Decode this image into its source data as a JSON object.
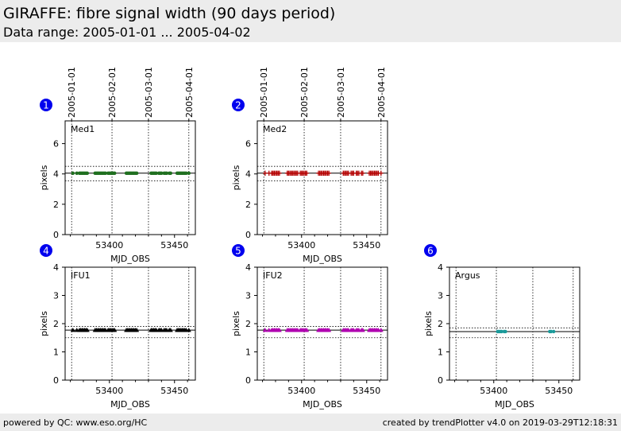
{
  "header": {
    "title": "GIRAFFE: fibre signal width (90 days period)",
    "subtitle": "Data range: 2005-01-01 ... 2005-04-02"
  },
  "footer": {
    "left": "powered by QC: www.eso.org/HC",
    "right": "created by trendPlotter v4.0 on 2019-03-29T12:18:31"
  },
  "chart_data": [
    {
      "type": "scatter",
      "badge": "1",
      "label": "Med1",
      "color": "#1f6f1f",
      "marker": "circle",
      "xlabel": "MJD_OBS",
      "ylabel": "pixels",
      "xlim": [
        53366,
        53466
      ],
      "ylim": [
        0,
        7.5
      ],
      "yticks": [
        0,
        2,
        4,
        6
      ],
      "xticks": [
        53400,
        53450
      ],
      "vlines": [
        53371,
        53402,
        53430,
        53461
      ],
      "date_labels": [
        "2005-01-01",
        "2005-02-01",
        "2005-03-01",
        "2005-04-01"
      ],
      "ref_line": 4.05,
      "dotted_lines": [
        4.5,
        3.55
      ],
      "x": [
        53372,
        53375,
        53377,
        53378,
        53379,
        53380,
        53381,
        53382,
        53383,
        53389,
        53390,
        53391,
        53392,
        53393,
        53394,
        53395,
        53396,
        53397,
        53399,
        53400,
        53401,
        53402,
        53403,
        53404,
        53413,
        53414,
        53415,
        53416,
        53417,
        53418,
        53419,
        53420,
        53421,
        53432,
        53433,
        53434,
        53435,
        53436,
        53438,
        53439,
        53440,
        53442,
        53443,
        53444,
        53446,
        53447,
        53452,
        53453,
        53454,
        53455,
        53456,
        53457,
        53458,
        53459,
        53461
      ],
      "y": [
        4.05,
        4.05,
        4.05,
        4.05,
        4.05,
        4.05,
        4.05,
        4.05,
        4.05,
        4.05,
        4.05,
        4.05,
        4.05,
        4.05,
        4.05,
        4.05,
        4.05,
        4.05,
        4.05,
        4.05,
        4.05,
        4.05,
        4.05,
        4.05,
        4.05,
        4.05,
        4.05,
        4.05,
        4.05,
        4.05,
        4.05,
        4.05,
        4.05,
        4.05,
        4.05,
        4.05,
        4.05,
        4.05,
        4.05,
        4.05,
        4.05,
        4.05,
        4.05,
        4.05,
        4.05,
        4.05,
        4.05,
        4.05,
        4.05,
        4.05,
        4.05,
        4.05,
        4.05,
        4.05,
        4.05
      ]
    },
    {
      "type": "scatter",
      "badge": "2",
      "label": "Med2",
      "color": "#b40000",
      "marker": "plus",
      "xlabel": "MJD_OBS",
      "ylabel": "pixels",
      "xlim": [
        53366,
        53466
      ],
      "ylim": [
        0,
        7.5
      ],
      "yticks": [
        0,
        2,
        4,
        6
      ],
      "xticks": [
        53400,
        53450
      ],
      "vlines": [
        53371,
        53402,
        53430,
        53461
      ],
      "date_labels": [
        "2005-01-01",
        "2005-02-01",
        "2005-03-01",
        "2005-04-01"
      ],
      "ref_line": 4.05,
      "dotted_lines": [
        4.5,
        3.55
      ],
      "x": [
        53372,
        53375,
        53377,
        53378,
        53379,
        53380,
        53381,
        53382,
        53383,
        53389,
        53390,
        53391,
        53392,
        53393,
        53394,
        53395,
        53396,
        53397,
        53399,
        53400,
        53401,
        53402,
        53403,
        53404,
        53413,
        53414,
        53415,
        53416,
        53417,
        53418,
        53419,
        53420,
        53421,
        53432,
        53433,
        53434,
        53435,
        53436,
        53438,
        53439,
        53440,
        53442,
        53443,
        53444,
        53446,
        53447,
        53452,
        53453,
        53454,
        53455,
        53456,
        53457,
        53458,
        53459,
        53461
      ],
      "y": [
        4.05,
        4.05,
        4.05,
        4.05,
        4.05,
        4.05,
        4.05,
        4.05,
        4.05,
        4.05,
        4.05,
        4.05,
        4.05,
        4.05,
        4.05,
        4.05,
        4.05,
        4.05,
        4.05,
        4.05,
        4.05,
        4.05,
        4.05,
        4.05,
        4.05,
        4.05,
        4.05,
        4.05,
        4.05,
        4.05,
        4.05,
        4.05,
        4.05,
        4.05,
        4.05,
        4.05,
        4.05,
        4.05,
        4.05,
        4.05,
        4.05,
        4.05,
        4.05,
        4.05,
        4.05,
        4.05,
        4.05,
        4.05,
        4.05,
        4.05,
        4.05,
        4.05,
        4.05,
        4.05,
        4.05
      ]
    },
    {
      "type": "scatter",
      "badge": "4",
      "label": "IFU1",
      "color": "#000000",
      "marker": "triangle",
      "xlabel": "MJD_OBS",
      "ylabel": "pixels",
      "xlim": [
        53366,
        53466
      ],
      "ylim": [
        0,
        4
      ],
      "yticks": [
        0,
        1,
        2,
        3,
        4
      ],
      "xticks": [
        53400,
        53450
      ],
      "vlines": [
        53371,
        53402,
        53430,
        53461
      ],
      "date_labels": [],
      "ref_line": 1.77,
      "dotted_lines": [
        1.9,
        1.5
      ],
      "x": [
        53372,
        53375,
        53377,
        53378,
        53379,
        53380,
        53381,
        53382,
        53383,
        53389,
        53390,
        53391,
        53392,
        53393,
        53394,
        53395,
        53396,
        53397,
        53399,
        53400,
        53401,
        53402,
        53403,
        53404,
        53413,
        53414,
        53415,
        53416,
        53417,
        53418,
        53419,
        53420,
        53421,
        53432,
        53433,
        53434,
        53435,
        53436,
        53438,
        53439,
        53440,
        53442,
        53443,
        53444,
        53446,
        53447,
        53452,
        53453,
        53454,
        53455,
        53456,
        53457,
        53458,
        53459,
        53461
      ],
      "y": [
        1.77,
        1.77,
        1.77,
        1.77,
        1.77,
        1.77,
        1.77,
        1.77,
        1.77,
        1.77,
        1.77,
        1.77,
        1.77,
        1.77,
        1.77,
        1.77,
        1.77,
        1.77,
        1.77,
        1.77,
        1.77,
        1.77,
        1.77,
        1.77,
        1.77,
        1.77,
        1.77,
        1.77,
        1.77,
        1.77,
        1.77,
        1.77,
        1.77,
        1.77,
        1.77,
        1.77,
        1.77,
        1.77,
        1.77,
        1.77,
        1.77,
        1.77,
        1.77,
        1.77,
        1.77,
        1.77,
        1.77,
        1.77,
        1.77,
        1.77,
        1.77,
        1.77,
        1.77,
        1.77,
        1.77
      ]
    },
    {
      "type": "scatter",
      "badge": "5",
      "label": "IFU2",
      "color": "#b000b0",
      "marker": "triangle",
      "xlabel": "MJD_OBS",
      "ylabel": "pixels",
      "xlim": [
        53366,
        53466
      ],
      "ylim": [
        0,
        4
      ],
      "yticks": [
        0,
        1,
        2,
        3,
        4
      ],
      "xticks": [
        53400,
        53450
      ],
      "vlines": [
        53371,
        53402,
        53430,
        53461
      ],
      "date_labels": [],
      "ref_line": 1.77,
      "dotted_lines": [
        1.9,
        1.5
      ],
      "x": [
        53372,
        53375,
        53377,
        53378,
        53379,
        53380,
        53381,
        53382,
        53383,
        53389,
        53390,
        53391,
        53392,
        53393,
        53394,
        53395,
        53396,
        53397,
        53399,
        53400,
        53401,
        53402,
        53403,
        53404,
        53413,
        53414,
        53415,
        53416,
        53417,
        53418,
        53419,
        53420,
        53421,
        53432,
        53433,
        53434,
        53435,
        53436,
        53438,
        53439,
        53440,
        53442,
        53443,
        53444,
        53446,
        53447,
        53452,
        53453,
        53454,
        53455,
        53456,
        53457,
        53458,
        53459,
        53461
      ],
      "y": [
        1.77,
        1.77,
        1.77,
        1.77,
        1.77,
        1.77,
        1.77,
        1.77,
        1.77,
        1.77,
        1.77,
        1.77,
        1.77,
        1.77,
        1.77,
        1.77,
        1.77,
        1.77,
        1.77,
        1.77,
        1.77,
        1.77,
        1.77,
        1.77,
        1.77,
        1.77,
        1.77,
        1.77,
        1.77,
        1.77,
        1.77,
        1.77,
        1.77,
        1.77,
        1.77,
        1.77,
        1.77,
        1.77,
        1.77,
        1.77,
        1.77,
        1.77,
        1.77,
        1.77,
        1.77,
        1.77,
        1.77,
        1.77,
        1.77,
        1.77,
        1.77,
        1.77,
        1.77,
        1.77,
        1.77
      ]
    },
    {
      "type": "scatter",
      "badge": "6",
      "label": "Argus",
      "color": "#1a9a9a",
      "marker": "circle",
      "xlabel": "MJD_OBS",
      "ylabel": "pixels",
      "xlim": [
        53366,
        53466
      ],
      "ylim": [
        0,
        4
      ],
      "yticks": [
        0,
        1,
        2,
        3,
        4
      ],
      "xticks": [
        53400,
        53450
      ],
      "vlines": [
        53371,
        53402,
        53430,
        53461
      ],
      "date_labels": [],
      "ref_line": 1.72,
      "dotted_lines": [
        1.85,
        1.5
      ],
      "x": [
        53403,
        53404,
        53405,
        53406,
        53408,
        53409,
        53443,
        53444,
        53446
      ],
      "y": [
        1.72,
        1.72,
        1.72,
        1.72,
        1.72,
        1.72,
        1.72,
        1.72,
        1.72
      ]
    }
  ]
}
